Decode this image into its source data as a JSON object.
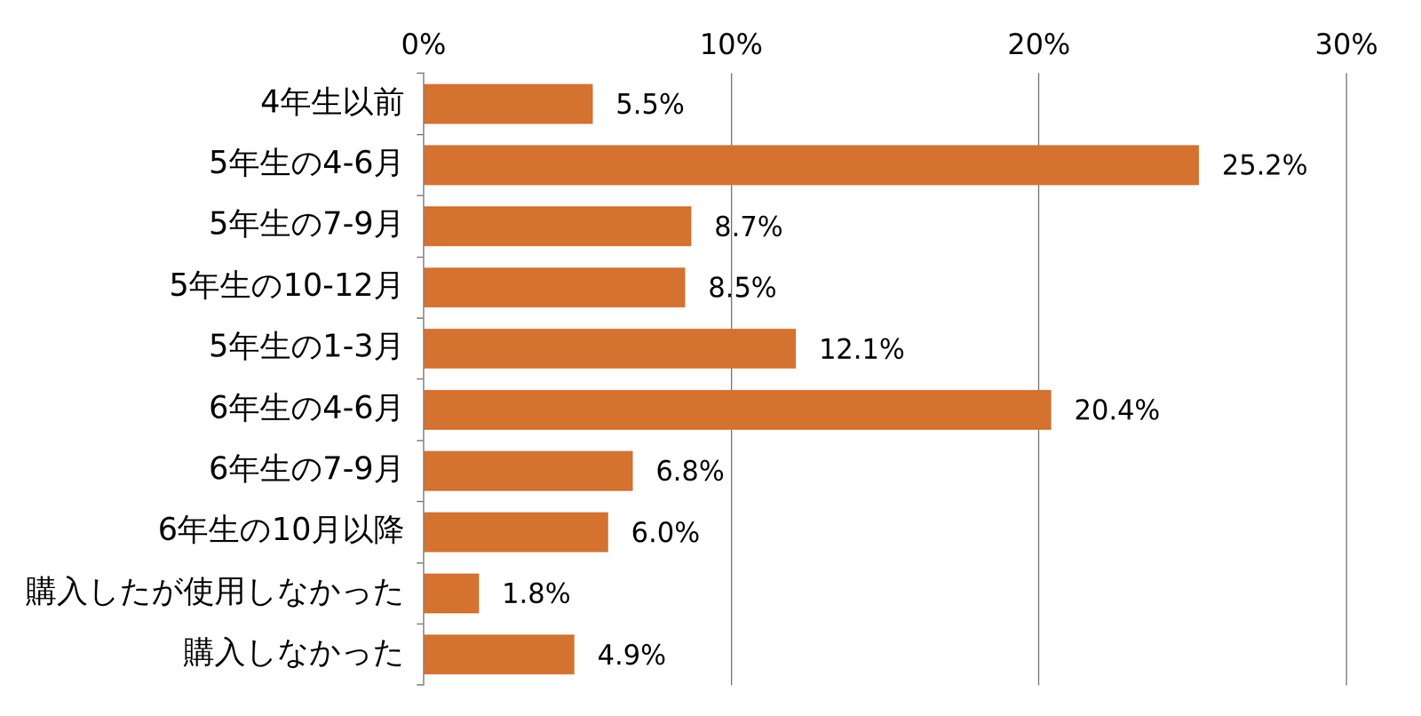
{
  "chart_data": {
    "type": "bar",
    "orientation": "horizontal",
    "categories": [
      "4年生以前",
      "5年生の4-6月",
      "5年生の7-9月",
      "5年生の10-12月",
      "5年生の1-3月",
      "6年生の4-6月",
      "6年生の7-9月",
      "6年生の10月以降",
      "購入したが使用しなかった",
      "購入しなかった"
    ],
    "values": [
      5.5,
      25.2,
      8.7,
      8.5,
      12.1,
      20.4,
      6.8,
      6.0,
      1.8,
      4.9
    ],
    "value_labels": [
      "5.5%",
      "25.2%",
      "8.7%",
      "8.5%",
      "12.1%",
      "20.4%",
      "6.8%",
      "6.0%",
      "1.8%",
      "4.9%"
    ],
    "color": "#d5722f",
    "xlim": [
      0,
      30
    ],
    "xticks": [
      {
        "value": 0,
        "label": "0%"
      },
      {
        "value": 10,
        "label": "10%"
      },
      {
        "value": 20,
        "label": "20%"
      },
      {
        "value": 30,
        "label": "30%"
      }
    ],
    "grid": true,
    "data_labels": true
  }
}
